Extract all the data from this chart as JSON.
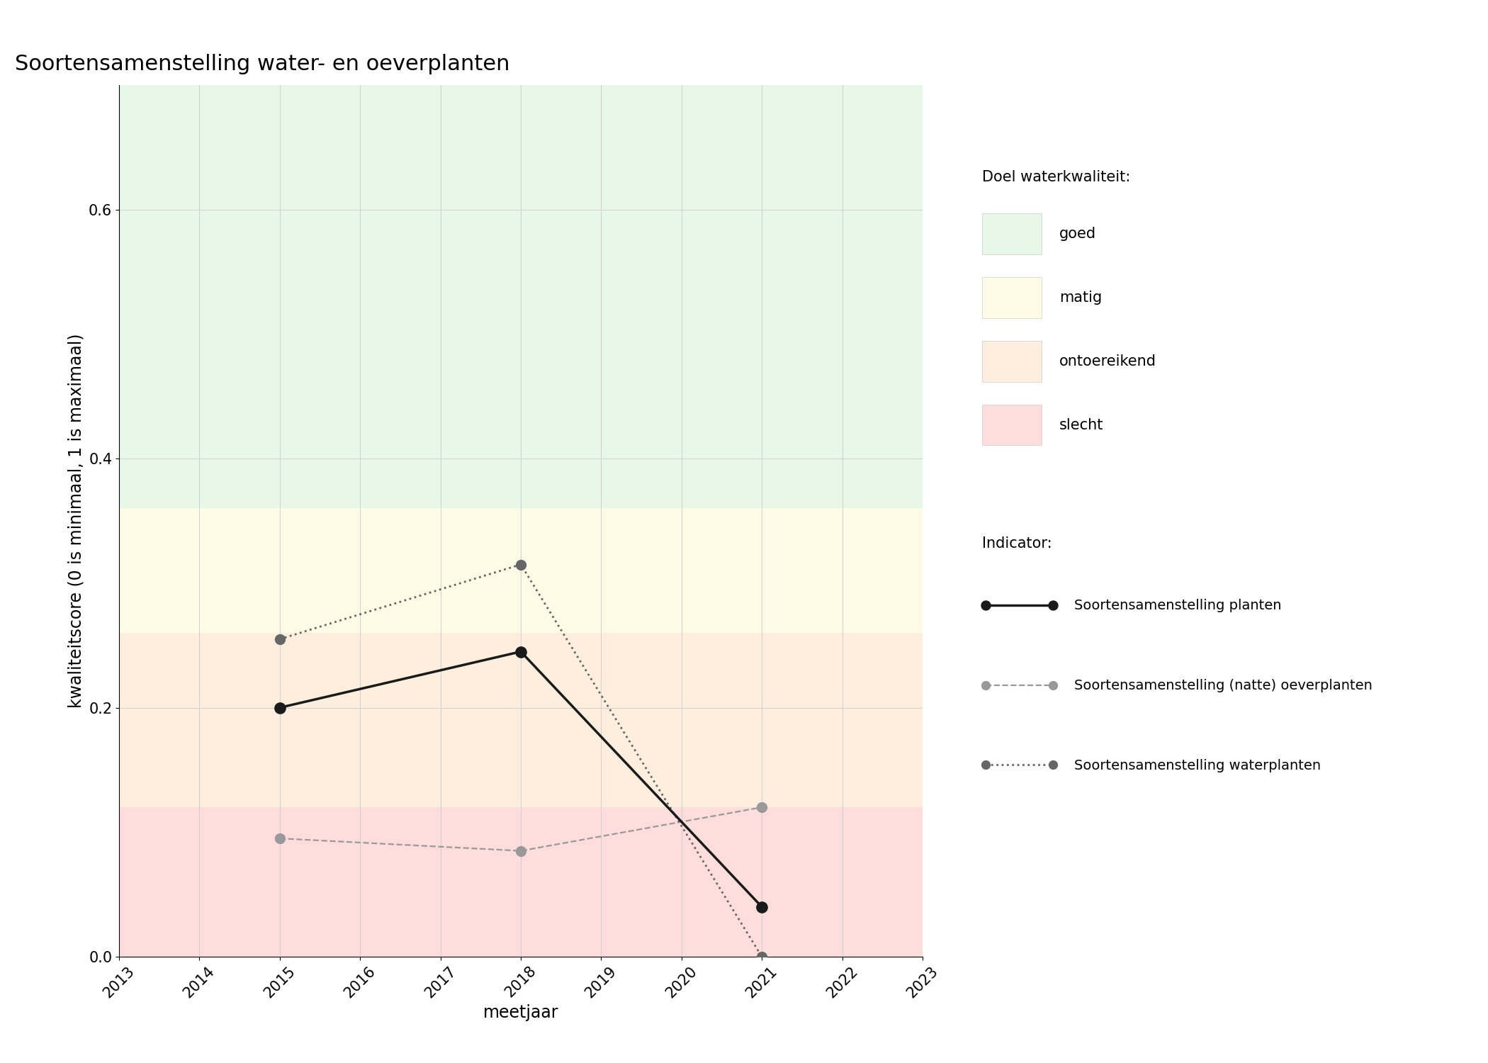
{
  "title": "Soortensamenstelling water- en oeverplanten",
  "xlabel": "meetjaar",
  "ylabel": "kwaliteitscore (0 is minimaal, 1 is maximaal)",
  "xlim": [
    2013,
    2023
  ],
  "ylim": [
    0,
    0.7
  ],
  "yticks": [
    0.0,
    0.2,
    0.4,
    0.6
  ],
  "xticks": [
    2013,
    2014,
    2015,
    2016,
    2017,
    2018,
    2019,
    2020,
    2021,
    2022,
    2023
  ],
  "background_color": "#ffffff",
  "bg_zones": [
    {
      "ymin": 0.0,
      "ymax": 0.12,
      "color": "#ffdddd",
      "label": "slecht"
    },
    {
      "ymin": 0.12,
      "ymax": 0.26,
      "color": "#fdeede",
      "label": "ontoereikend"
    },
    {
      "ymin": 0.26,
      "ymax": 0.36,
      "color": "#fdfae6",
      "label": "matig"
    },
    {
      "ymin": 0.36,
      "ymax": 0.7,
      "color": "#e8f8e8",
      "label": "goed"
    }
  ],
  "series": [
    {
      "name": "Soortensamenstelling planten",
      "x": [
        2015,
        2018,
        2021
      ],
      "y": [
        0.2,
        0.245,
        0.04
      ],
      "color": "#1a1a1a",
      "linestyle": "solid",
      "linewidth": 2.5,
      "markersize": 11,
      "marker": "o",
      "markerfacecolor": "#1a1a1a",
      "zorder": 5
    },
    {
      "name": "Soortensamenstelling (natte) oeverplanten",
      "x": [
        2015,
        2018,
        2021
      ],
      "y": [
        0.095,
        0.085,
        0.12
      ],
      "color": "#999999",
      "linestyle": "dashed",
      "linewidth": 1.6,
      "markersize": 10,
      "marker": "o",
      "markerfacecolor": "#999999",
      "zorder": 4
    },
    {
      "name": "Soortensamenstelling waterplanten",
      "x": [
        2015,
        2018,
        2021
      ],
      "y": [
        0.255,
        0.315,
        0.0
      ],
      "color": "#666666",
      "linestyle": "dotted",
      "linewidth": 2.0,
      "markersize": 10,
      "marker": "o",
      "markerfacecolor": "#666666",
      "zorder": 4
    }
  ],
  "legend_title_doel": "Doel waterkwaliteit:",
  "legend_title_indicator": "Indicator:",
  "doel_colors": [
    "#e8f8e8",
    "#fdfae6",
    "#fdeede",
    "#ffdddd"
  ],
  "doel_labels": [
    "goed",
    "matig",
    "ontoereikend",
    "slecht"
  ],
  "grid_color": "#d0d0d0",
  "grid_linewidth": 0.7,
  "title_fontsize": 22,
  "axis_label_fontsize": 17,
  "tick_fontsize": 15,
  "legend_fontsize": 15
}
